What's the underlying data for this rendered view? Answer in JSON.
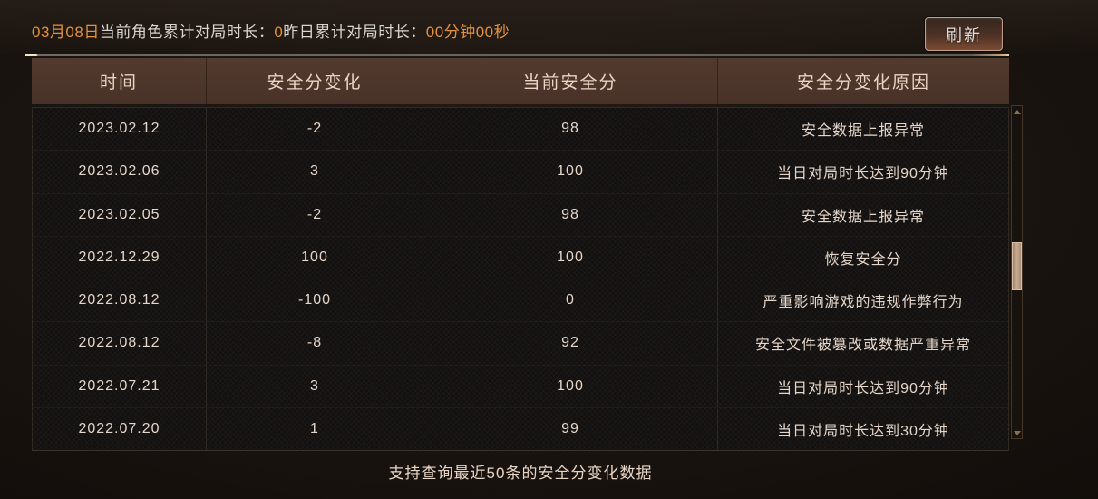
{
  "topbar": {
    "segments": [
      {
        "text": "03月08日",
        "color": "orange"
      },
      {
        "text": "当前角色累计对局时长：",
        "color": "light"
      },
      {
        "text": "0",
        "color": "orange"
      },
      {
        "text": "昨日累计对局时长：",
        "color": "light"
      },
      {
        "text": "00分钟00秒",
        "color": "orange"
      }
    ],
    "refresh_label": "刷新"
  },
  "table": {
    "headers": [
      "时间",
      "安全分变化",
      "当前安全分",
      "安全分变化原因"
    ],
    "rows": [
      [
        "2023.02.12",
        "-2",
        "98",
        "安全数据上报异常"
      ],
      [
        "2023.02.06",
        "3",
        "100",
        "当日对局时长达到90分钟"
      ],
      [
        "2023.02.05",
        "-2",
        "98",
        "安全数据上报异常"
      ],
      [
        "2022.12.29",
        "100",
        "100",
        "恢复安全分"
      ],
      [
        "2022.08.12",
        "-100",
        "0",
        "严重影响游戏的违规作弊行为"
      ],
      [
        "2022.08.12",
        "-8",
        "92",
        "安全文件被篡改或数据严重异常"
      ],
      [
        "2022.07.21",
        "3",
        "100",
        "当日对局时长达到90分钟"
      ],
      [
        "2022.07.20",
        "1",
        "99",
        "当日对局时长达到30分钟"
      ]
    ]
  },
  "footer": {
    "note": "支持查询最近50条的安全分变化数据"
  },
  "colors": {
    "accent_orange": "#e2913e",
    "header_bg": "#4d352b",
    "header_text": "#ecd3c2",
    "body_text": "#e6d6c9",
    "button_border": "#c2a089"
  }
}
